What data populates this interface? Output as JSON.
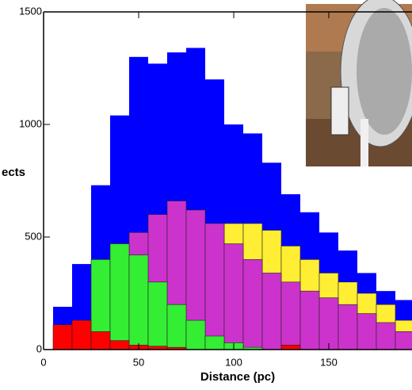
{
  "chart_data": {
    "type": "histogram",
    "ylabel": "ects",
    "xlabel": "Distance (pc)",
    "bins": [
      5,
      15,
      25,
      35,
      45,
      55,
      65,
      75,
      85,
      95,
      105,
      115,
      125,
      135,
      145,
      155,
      165,
      175,
      185,
      195
    ],
    "series": [
      {
        "color": "#0000ff",
        "values": [
          190,
          380,
          730,
          1040,
          1300,
          1270,
          1320,
          1340,
          1200,
          1000,
          960,
          830,
          690,
          610,
          520,
          440,
          340,
          260,
          220
        ]
      },
      {
        "color": "#ffee33",
        "values": [
          0,
          0,
          0,
          0,
          0,
          0,
          0,
          0,
          0,
          560,
          560,
          530,
          460,
          400,
          340,
          300,
          250,
          200,
          130
        ]
      },
      {
        "color": "#cc33cc",
        "values": [
          0,
          0,
          0,
          0,
          520,
          600,
          660,
          620,
          560,
          470,
          400,
          340,
          300,
          260,
          230,
          200,
          160,
          120,
          80
        ]
      },
      {
        "color": "#33ee33",
        "values": [
          0,
          0,
          400,
          470,
          420,
          300,
          200,
          130,
          60,
          30,
          10,
          0,
          0,
          0,
          0,
          0,
          0,
          0,
          0
        ]
      },
      {
        "color": "#ff0000",
        "values": [
          110,
          130,
          80,
          40,
          20,
          15,
          10,
          0,
          0,
          0,
          0,
          0,
          20,
          0,
          0,
          0,
          0,
          0,
          0
        ]
      }
    ],
    "xlim": [
      0,
      195
    ],
    "ylim": [
      0,
      1500
    ],
    "xticks": [
      0,
      50,
      100,
      150
    ],
    "yticks": [
      0,
      500,
      1000,
      1500
    ]
  }
}
